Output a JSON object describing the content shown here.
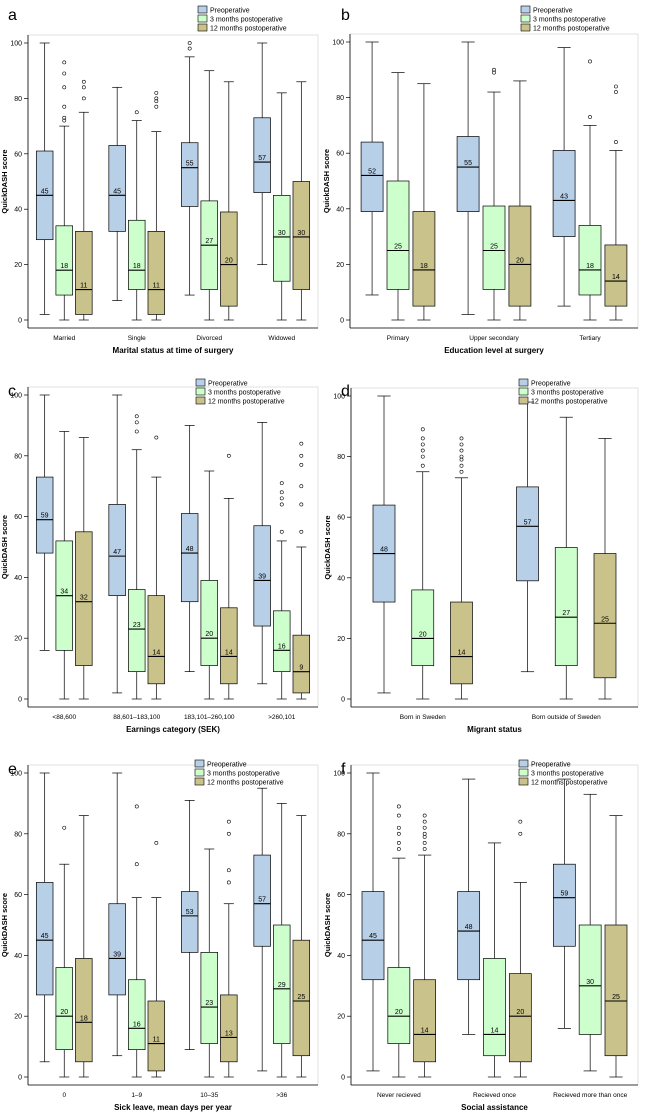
{
  "colors": {
    "preop": "#b8cfe8",
    "m3": "#ccffcc",
    "m12": "#c9c28a",
    "axis": "#000000"
  },
  "legend": [
    "Preoperative",
    "3 months postoperative",
    "12 months postoperative"
  ],
  "chart_data": [
    {
      "type": "box",
      "panel": "a",
      "xlabel": "Marital status at time of surgery",
      "ylabel": "QuickDASH score",
      "ylim": [
        0,
        100
      ],
      "yticks": [
        0,
        20,
        40,
        60,
        80,
        100
      ],
      "categories": [
        "Married",
        "Single",
        "Divorced",
        "Widowed"
      ],
      "series": [
        {
          "name": "Preoperative",
          "boxes": [
            {
              "min": 2,
              "q1": 29,
              "median": 45,
              "q3": 61,
              "max": 100,
              "outliers": []
            },
            {
              "min": 7,
              "q1": 32,
              "median": 45,
              "q3": 63,
              "max": 84,
              "outliers": []
            },
            {
              "min": 9,
              "q1": 41,
              "median": 55,
              "q3": 64,
              "max": 95,
              "outliers": [
                98,
                100
              ]
            },
            {
              "min": 20,
              "q1": 46,
              "median": 57,
              "q3": 73,
              "max": 100,
              "outliers": []
            }
          ]
        },
        {
          "name": "3 months postoperative",
          "boxes": [
            {
              "min": 0,
              "q1": 9,
              "median": 18,
              "q3": 34,
              "max": 70,
              "outliers": [
                72,
                73,
                77,
                84,
                89,
                93
              ]
            },
            {
              "min": 0,
              "q1": 11,
              "median": 18,
              "q3": 36,
              "max": 72,
              "outliers": [
                75
              ]
            },
            {
              "min": 0,
              "q1": 11,
              "median": 27,
              "q3": 43,
              "max": 90,
              "outliers": []
            },
            {
              "min": 0,
              "q1": 14,
              "median": 30,
              "q3": 45,
              "max": 82,
              "outliers": []
            }
          ]
        },
        {
          "name": "12 months postoperative",
          "boxes": [
            {
              "min": 0,
              "q1": 2,
              "median": 11,
              "q3": 32,
              "max": 75,
              "outliers": [
                80,
                84,
                86
              ]
            },
            {
              "min": 0,
              "q1": 2,
              "median": 11,
              "q3": 32,
              "max": 68,
              "outliers": [
                77,
                79,
                80,
                82
              ]
            },
            {
              "min": 0,
              "q1": 5,
              "median": 20,
              "q3": 39,
              "max": 86,
              "outliers": []
            },
            {
              "min": 0,
              "q1": 11,
              "median": 30,
              "q3": 50,
              "max": 86,
              "outliers": []
            }
          ]
        }
      ]
    },
    {
      "type": "box",
      "panel": "b",
      "xlabel": "Education level at surgery",
      "ylabel": "QuickDASH score",
      "ylim": [
        0,
        100
      ],
      "yticks": [
        0,
        20,
        40,
        60,
        80,
        100
      ],
      "categories": [
        "Primary",
        "Upper secondary",
        "Tertiary"
      ],
      "series": [
        {
          "name": "Preoperative",
          "boxes": [
            {
              "min": 9,
              "q1": 39,
              "median": 52,
              "q3": 64,
              "max": 100,
              "outliers": []
            },
            {
              "min": 2,
              "q1": 39,
              "median": 55,
              "q3": 66,
              "max": 100,
              "outliers": []
            },
            {
              "min": 5,
              "q1": 30,
              "median": 43,
              "q3": 61,
              "max": 98,
              "outliers": []
            }
          ]
        },
        {
          "name": "3 months postoperative",
          "boxes": [
            {
              "min": 0,
              "q1": 11,
              "median": 25,
              "q3": 50,
              "max": 89,
              "outliers": []
            },
            {
              "min": 0,
              "q1": 11,
              "median": 25,
              "q3": 41,
              "max": 82,
              "outliers": [
                89,
                90
              ]
            },
            {
              "min": 0,
              "q1": 9,
              "median": 18,
              "q3": 34,
              "max": 70,
              "outliers": [
                73,
                93
              ]
            }
          ]
        },
        {
          "name": "12 months postoperative",
          "boxes": [
            {
              "min": 0,
              "q1": 5,
              "median": 18,
              "q3": 39,
              "max": 85,
              "outliers": []
            },
            {
              "min": 0,
              "q1": 5,
              "median": 20,
              "q3": 41,
              "max": 86,
              "outliers": []
            },
            {
              "min": 0,
              "q1": 5,
              "median": 14,
              "q3": 27,
              "max": 61,
              "outliers": [
                64,
                82,
                84
              ]
            }
          ]
        }
      ]
    },
    {
      "type": "box",
      "panel": "c",
      "xlabel": "Earnings category (SEK)",
      "ylabel": "QuickDASH score",
      "ylim": [
        0,
        100
      ],
      "yticks": [
        0,
        20,
        40,
        60,
        80,
        100
      ],
      "categories": [
        "<88,600",
        "88,601–183,100",
        "183,101–260,100",
        ">260,101"
      ],
      "series": [
        {
          "name": "Preoperative",
          "boxes": [
            {
              "min": 16,
              "q1": 48,
              "median": 59,
              "q3": 73,
              "max": 100,
              "outliers": []
            },
            {
              "min": 2,
              "q1": 34,
              "median": 47,
              "q3": 64,
              "max": 100,
              "outliers": []
            },
            {
              "min": 9,
              "q1": 32,
              "median": 48,
              "q3": 61,
              "max": 90,
              "outliers": []
            },
            {
              "min": 5,
              "q1": 24,
              "median": 39,
              "q3": 57,
              "max": 91,
              "outliers": []
            }
          ]
        },
        {
          "name": "3 months postoperative",
          "boxes": [
            {
              "min": 0,
              "q1": 16,
              "median": 34,
              "q3": 52,
              "max": 88,
              "outliers": []
            },
            {
              "min": 0,
              "q1": 9,
              "median": 23,
              "q3": 36,
              "max": 82,
              "outliers": [
                88,
                91,
                93
              ]
            },
            {
              "min": 0,
              "q1": 11,
              "median": 20,
              "q3": 39,
              "max": 75,
              "outliers": []
            },
            {
              "min": 0,
              "q1": 9,
              "median": 16,
              "q3": 29,
              "max": 52,
              "outliers": [
                55,
                64,
                66,
                68,
                71
              ]
            }
          ]
        },
        {
          "name": "12 months postoperative",
          "boxes": [
            {
              "min": 0,
              "q1": 11,
              "median": 32,
              "q3": 55,
              "max": 86,
              "outliers": []
            },
            {
              "min": 0,
              "q1": 5,
              "median": 14,
              "q3": 34,
              "max": 73,
              "outliers": [
                86
              ]
            },
            {
              "min": 0,
              "q1": 5,
              "median": 14,
              "q3": 30,
              "max": 66,
              "outliers": [
                80
              ]
            },
            {
              "min": 0,
              "q1": 2,
              "median": 9,
              "q3": 21,
              "max": 50,
              "outliers": [
                55,
                64,
                70,
                77,
                80,
                84
              ]
            }
          ]
        }
      ]
    },
    {
      "type": "box",
      "panel": "d",
      "xlabel": "Migrant status",
      "ylabel": "QuickDASH score",
      "ylim": [
        0,
        100
      ],
      "yticks": [
        0,
        20,
        40,
        60,
        80,
        100
      ],
      "categories": [
        "Born in Sweden",
        "Born outside of Sweden"
      ],
      "series": [
        {
          "name": "Preoperative",
          "boxes": [
            {
              "min": 2,
              "q1": 32,
              "median": 48,
              "q3": 64,
              "max": 100,
              "outliers": []
            },
            {
              "min": 9,
              "q1": 39,
              "median": 57,
              "q3": 70,
              "max": 98,
              "outliers": []
            }
          ]
        },
        {
          "name": "3 months postoperative",
          "boxes": [
            {
              "min": 0,
              "q1": 11,
              "median": 20,
              "q3": 36,
              "max": 75,
              "outliers": [
                77,
                80,
                82,
                84,
                86,
                89
              ]
            },
            {
              "min": 0,
              "q1": 11,
              "median": 27,
              "q3": 50,
              "max": 93,
              "outliers": []
            }
          ]
        },
        {
          "name": "12 months postoperative",
          "boxes": [
            {
              "min": 0,
              "q1": 5,
              "median": 14,
              "q3": 32,
              "max": 73,
              "outliers": [
                75,
                77,
                79,
                80,
                82,
                84,
                86
              ]
            },
            {
              "min": 0,
              "q1": 7,
              "median": 25,
              "q3": 48,
              "max": 86,
              "outliers": []
            }
          ]
        }
      ]
    },
    {
      "type": "box",
      "panel": "e",
      "xlabel": "Sick leave, mean days per year",
      "ylabel": "QuickDASH score",
      "ylim": [
        0,
        100
      ],
      "yticks": [
        0,
        20,
        40,
        60,
        80,
        100
      ],
      "categories": [
        "0",
        "1–9",
        "10–35",
        ">36"
      ],
      "series": [
        {
          "name": "Preoperative",
          "boxes": [
            {
              "min": 5,
              "q1": 27,
              "median": 45,
              "q3": 64,
              "max": 100,
              "outliers": []
            },
            {
              "min": 7,
              "q1": 27,
              "median": 39,
              "q3": 57,
              "max": 100,
              "outliers": []
            },
            {
              "min": 9,
              "q1": 41,
              "median": 53,
              "q3": 61,
              "max": 91,
              "outliers": []
            },
            {
              "min": 2,
              "q1": 43,
              "median": 57,
              "q3": 73,
              "max": 95,
              "outliers": []
            }
          ]
        },
        {
          "name": "3 months postoperative",
          "boxes": [
            {
              "min": 0,
              "q1": 9,
              "median": 20,
              "q3": 36,
              "max": 70,
              "outliers": [
                82
              ]
            },
            {
              "min": 0,
              "q1": 9,
              "median": 16,
              "q3": 32,
              "max": 59,
              "outliers": [
                70,
                89
              ]
            },
            {
              "min": 0,
              "q1": 11,
              "median": 23,
              "q3": 41,
              "max": 75,
              "outliers": []
            },
            {
              "min": 0,
              "q1": 11,
              "median": 29,
              "q3": 50,
              "max": 90,
              "outliers": []
            }
          ]
        },
        {
          "name": "12 months postoperative",
          "boxes": [
            {
              "min": 0,
              "q1": 5,
              "median": 18,
              "q3": 39,
              "max": 86,
              "outliers": []
            },
            {
              "min": 0,
              "q1": 2,
              "median": 11,
              "q3": 25,
              "max": 59,
              "outliers": [
                77
              ]
            },
            {
              "min": 0,
              "q1": 5,
              "median": 13,
              "q3": 27,
              "max": 57,
              "outliers": [
                64,
                68,
                80,
                84
              ]
            },
            {
              "min": 0,
              "q1": 7,
              "median": 25,
              "q3": 45,
              "max": 86,
              "outliers": []
            }
          ]
        }
      ]
    },
    {
      "type": "box",
      "panel": "f",
      "xlabel": "Social assistance",
      "ylabel": "QuickDASH score",
      "ylim": [
        0,
        100
      ],
      "yticks": [
        0,
        20,
        40,
        60,
        80,
        100
      ],
      "categories": [
        "Never recieved",
        "Recieved once",
        "Recieved more than once"
      ],
      "series": [
        {
          "name": "Preoperative",
          "boxes": [
            {
              "min": 2,
              "q1": 32,
              "median": 45,
              "q3": 61,
              "max": 100,
              "outliers": []
            },
            {
              "min": 14,
              "q1": 32,
              "median": 48,
              "q3": 61,
              "max": 98,
              "outliers": []
            },
            {
              "min": 16,
              "q1": 43,
              "median": 59,
              "q3": 70,
              "max": 98,
              "outliers": []
            }
          ]
        },
        {
          "name": "3 months postoperative",
          "boxes": [
            {
              "min": 0,
              "q1": 11,
              "median": 20,
              "q3": 36,
              "max": 72,
              "outliers": [
                75,
                77,
                80,
                82,
                86,
                89
              ]
            },
            {
              "min": 0,
              "q1": 7,
              "median": 14,
              "q3": 39,
              "max": 77,
              "outliers": []
            },
            {
              "min": 2,
              "q1": 14,
              "median": 30,
              "q3": 50,
              "max": 93,
              "outliers": []
            }
          ]
        },
        {
          "name": "12 months postoperative",
          "boxes": [
            {
              "min": 0,
              "q1": 5,
              "median": 14,
              "q3": 32,
              "max": 73,
              "outliers": [
                75,
                77,
                79,
                80,
                82,
                84,
                86
              ]
            },
            {
              "min": 0,
              "q1": 5,
              "median": 20,
              "q3": 34,
              "max": 64,
              "outliers": [
                80,
                84
              ]
            },
            {
              "min": 0,
              "q1": 7,
              "median": 25,
              "q3": 50,
              "max": 86,
              "outliers": []
            }
          ]
        }
      ]
    }
  ]
}
